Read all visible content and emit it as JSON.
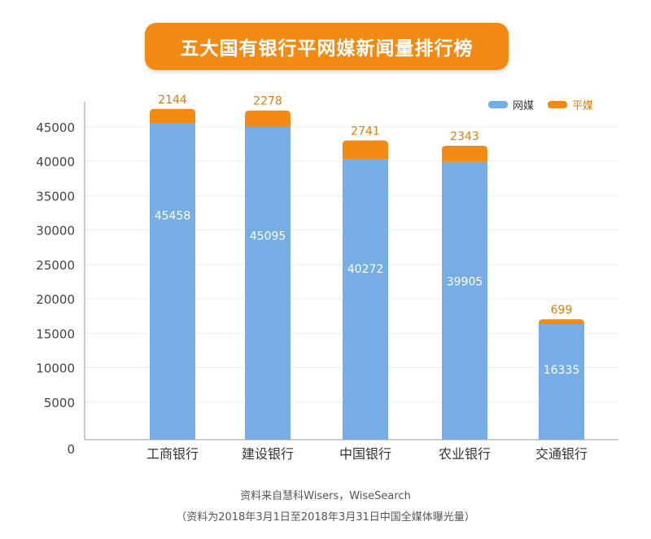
{
  "chart_data": {
    "type": "bar",
    "stacked": true,
    "title": "五大国有银行平网媒新闻量排行榜",
    "categories": [
      "工商银行",
      "建设银行",
      "中国银行",
      "农业银行",
      "交通银行"
    ],
    "series": [
      {
        "name": "网媒",
        "color": "#76ade4",
        "values": [
          45458,
          45095,
          40272,
          39905,
          16335
        ]
      },
      {
        "name": "平媒",
        "color": "#f28a14",
        "values": [
          2144,
          2278,
          2741,
          2343,
          699
        ]
      }
    ],
    "yticks": [
      0,
      5000,
      10000,
      15000,
      20000,
      25000,
      30000,
      35000,
      40000,
      45000
    ],
    "ylim": [
      0,
      50000
    ],
    "xlabel": "",
    "ylabel": "",
    "grid": true,
    "legend": "top-right"
  },
  "source": {
    "line1": "资料来自慧科Wisers，WiseSearch",
    "line2": "（资料为2018年3月1日至2018年3月31日中国全媒体曝光量）"
  }
}
